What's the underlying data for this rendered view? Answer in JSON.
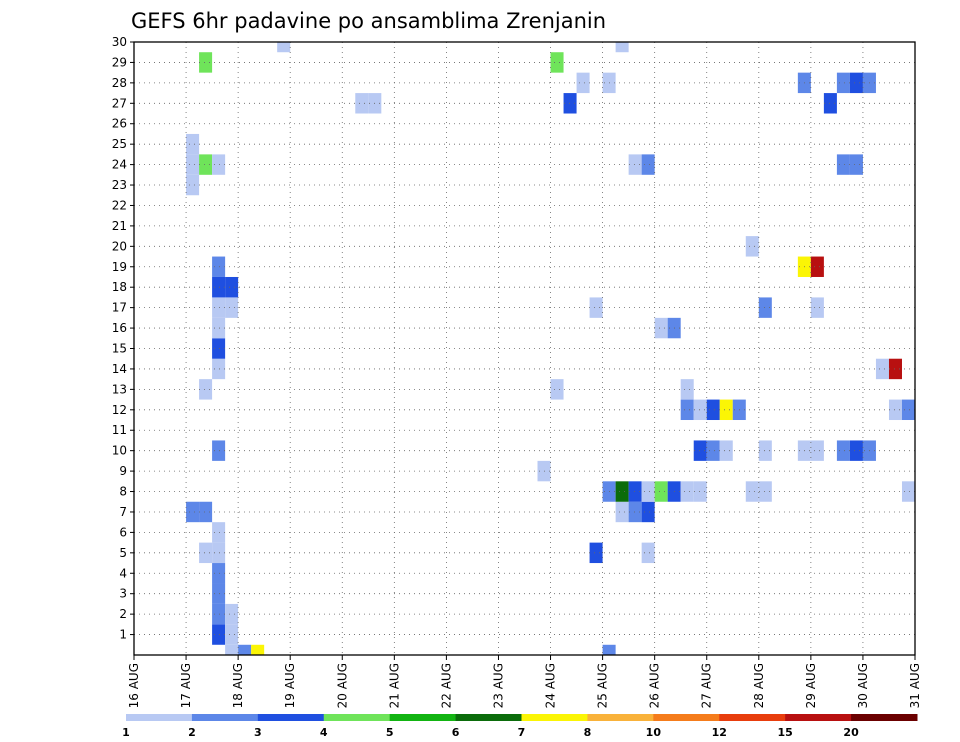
{
  "chart_data": {
    "type": "heatmap",
    "title": "GEFS 6hr padavine po ansamblima Zrenjanin",
    "xlabel": "",
    "ylabel": "",
    "x_tick_labels": [
      "16 AUG",
      "17 AUG",
      "18 AUG",
      "19 AUG",
      "20 AUG",
      "21 AUG",
      "22 AUG",
      "23 AUG",
      "24 AUG",
      "25 AUG",
      "26 AUG",
      "27 AUG",
      "28 AUG",
      "29 AUG",
      "30 AUG",
      "31 AUG"
    ],
    "x_range_days": [
      16.0,
      31.0
    ],
    "y_tick_labels": [
      "1",
      "2",
      "3",
      "4",
      "5",
      "6",
      "7",
      "8",
      "9",
      "10",
      "11",
      "12",
      "13",
      "14",
      "15",
      "16",
      "17",
      "18",
      "19",
      "20",
      "21",
      "22",
      "23",
      "24",
      "25",
      "26",
      "27",
      "28",
      "29",
      "30"
    ],
    "y_range": [
      0,
      30
    ],
    "cell_width_days": 0.25,
    "grid": true,
    "legend": {
      "placement": "bottom",
      "labels": [
        "1",
        "2",
        "3",
        "4",
        "5",
        "6",
        "7",
        "8",
        "10",
        "12",
        "15",
        "20"
      ],
      "colors": [
        "#b8c9f3",
        "#5d87e8",
        "#1f4fe0",
        "#6fe45a",
        "#12b412",
        "#0b6c0b",
        "#fbf505",
        "#f9b23a",
        "#f57c1b",
        "#e83d0d",
        "#b81010",
        "#6b0000"
      ]
    },
    "cells": [
      {
        "x": 17.0,
        "y": 7,
        "v": 2.5
      },
      {
        "x": 17.25,
        "y": 7,
        "v": 2.5
      },
      {
        "x": 17.0,
        "y": 23,
        "v": 1.5
      },
      {
        "x": 17.0,
        "y": 24,
        "v": 1.5
      },
      {
        "x": 17.0,
        "y": 25,
        "v": 1.5
      },
      {
        "x": 17.25,
        "y": 24,
        "v": 4.5
      },
      {
        "x": 17.25,
        "y": 29,
        "v": 4.5
      },
      {
        "x": 17.25,
        "y": 5,
        "v": 1.5
      },
      {
        "x": 17.25,
        "y": 13,
        "v": 1.5
      },
      {
        "x": 17.5,
        "y": 5,
        "v": 1.5
      },
      {
        "x": 17.5,
        "y": 6,
        "v": 1.5
      },
      {
        "x": 17.5,
        "y": 1,
        "v": 3.5
      },
      {
        "x": 17.5,
        "y": 2,
        "v": 2.5
      },
      {
        "x": 17.5,
        "y": 3,
        "v": 2.5
      },
      {
        "x": 17.5,
        "y": 4,
        "v": 2.5
      },
      {
        "x": 17.5,
        "y": 10,
        "v": 2.5
      },
      {
        "x": 17.5,
        "y": 14,
        "v": 1.5
      },
      {
        "x": 17.5,
        "y": 15,
        "v": 3.5
      },
      {
        "x": 17.5,
        "y": 16,
        "v": 1.5
      },
      {
        "x": 17.5,
        "y": 17,
        "v": 1.5
      },
      {
        "x": 17.5,
        "y": 18,
        "v": 3.5
      },
      {
        "x": 17.5,
        "y": 19,
        "v": 2.5
      },
      {
        "x": 17.5,
        "y": 24,
        "v": 1.5
      },
      {
        "x": 17.75,
        "y": 0,
        "v": 1.5
      },
      {
        "x": 17.75,
        "y": 1,
        "v": 1.5
      },
      {
        "x": 17.75,
        "y": 2,
        "v": 1.5
      },
      {
        "x": 17.75,
        "y": 17,
        "v": 1.5
      },
      {
        "x": 17.75,
        "y": 18,
        "v": 3.5
      },
      {
        "x": 18.0,
        "y": 0,
        "v": 2.5
      },
      {
        "x": 18.25,
        "y": 0,
        "v": 7.5
      },
      {
        "x": 18.75,
        "y": 30,
        "v": 1.5
      },
      {
        "x": 20.25,
        "y": 27,
        "v": 1.5
      },
      {
        "x": 20.5,
        "y": 27,
        "v": 1.5
      },
      {
        "x": 23.75,
        "y": 9,
        "v": 1.5
      },
      {
        "x": 24.0,
        "y": 13,
        "v": 1.5
      },
      {
        "x": 24.0,
        "y": 29,
        "v": 4.5
      },
      {
        "x": 24.25,
        "y": 27,
        "v": 3.5
      },
      {
        "x": 24.5,
        "y": 28,
        "v": 1.5
      },
      {
        "x": 24.75,
        "y": 5,
        "v": 3.5
      },
      {
        "x": 24.75,
        "y": 17,
        "v": 1.5
      },
      {
        "x": 25.0,
        "y": 0,
        "v": 2.5
      },
      {
        "x": 25.0,
        "y": 8,
        "v": 2.5
      },
      {
        "x": 25.0,
        "y": 28,
        "v": 1.5
      },
      {
        "x": 25.25,
        "y": 7,
        "v": 1.5
      },
      {
        "x": 25.25,
        "y": 8,
        "v": 6.5
      },
      {
        "x": 25.25,
        "y": 30,
        "v": 1.5
      },
      {
        "x": 25.5,
        "y": 7,
        "v": 2.5
      },
      {
        "x": 25.5,
        "y": 8,
        "v": 3.5
      },
      {
        "x": 25.5,
        "y": 24,
        "v": 1.5
      },
      {
        "x": 25.75,
        "y": 5,
        "v": 1.5
      },
      {
        "x": 25.75,
        "y": 7,
        "v": 3.5
      },
      {
        "x": 25.75,
        "y": 8,
        "v": 1.5
      },
      {
        "x": 25.75,
        "y": 24,
        "v": 2.5
      },
      {
        "x": 26.0,
        "y": 8,
        "v": 4.5
      },
      {
        "x": 26.0,
        "y": 16,
        "v": 1.5
      },
      {
        "x": 26.25,
        "y": 8,
        "v": 3.5
      },
      {
        "x": 26.25,
        "y": 16,
        "v": 2.5
      },
      {
        "x": 26.5,
        "y": 8,
        "v": 1.5
      },
      {
        "x": 26.5,
        "y": 12,
        "v": 2.5
      },
      {
        "x": 26.5,
        "y": 13,
        "v": 1.5
      },
      {
        "x": 26.75,
        "y": 8,
        "v": 1.5
      },
      {
        "x": 26.75,
        "y": 10,
        "v": 3.5
      },
      {
        "x": 26.75,
        "y": 12,
        "v": 1.5
      },
      {
        "x": 27.0,
        "y": 10,
        "v": 2.5
      },
      {
        "x": 27.0,
        "y": 12,
        "v": 3.5
      },
      {
        "x": 27.25,
        "y": 10,
        "v": 1.5
      },
      {
        "x": 27.25,
        "y": 12,
        "v": 7.5
      },
      {
        "x": 27.5,
        "y": 12,
        "v": 2.5
      },
      {
        "x": 27.75,
        "y": 8,
        "v": 1.5
      },
      {
        "x": 27.75,
        "y": 20,
        "v": 1.5
      },
      {
        "x": 28.0,
        "y": 8,
        "v": 1.5
      },
      {
        "x": 28.0,
        "y": 10,
        "v": 1.5
      },
      {
        "x": 28.0,
        "y": 17,
        "v": 2.5
      },
      {
        "x": 28.75,
        "y": 10,
        "v": 1.5
      },
      {
        "x": 28.75,
        "y": 19,
        "v": 7.5
      },
      {
        "x": 28.75,
        "y": 28,
        "v": 2.5
      },
      {
        "x": 29.0,
        "y": 10,
        "v": 1.5
      },
      {
        "x": 29.0,
        "y": 17,
        "v": 1.5
      },
      {
        "x": 29.0,
        "y": 19,
        "v": 17.5
      },
      {
        "x": 29.25,
        "y": 27,
        "v": 3.5
      },
      {
        "x": 29.5,
        "y": 10,
        "v": 2.5
      },
      {
        "x": 29.5,
        "y": 24,
        "v": 2.5
      },
      {
        "x": 29.5,
        "y": 28,
        "v": 2.5
      },
      {
        "x": 29.75,
        "y": 10,
        "v": 3.5
      },
      {
        "x": 29.75,
        "y": 24,
        "v": 2.5
      },
      {
        "x": 29.75,
        "y": 28,
        "v": 3.5
      },
      {
        "x": 30.0,
        "y": 10,
        "v": 2.5
      },
      {
        "x": 30.0,
        "y": 28,
        "v": 2.5
      },
      {
        "x": 30.25,
        "y": 14,
        "v": 1.5
      },
      {
        "x": 30.5,
        "y": 12,
        "v": 1.5
      },
      {
        "x": 30.5,
        "y": 14,
        "v": 17.5
      },
      {
        "x": 30.75,
        "y": 8,
        "v": 1.5
      },
      {
        "x": 30.75,
        "y": 12,
        "v": 2.5
      }
    ]
  }
}
